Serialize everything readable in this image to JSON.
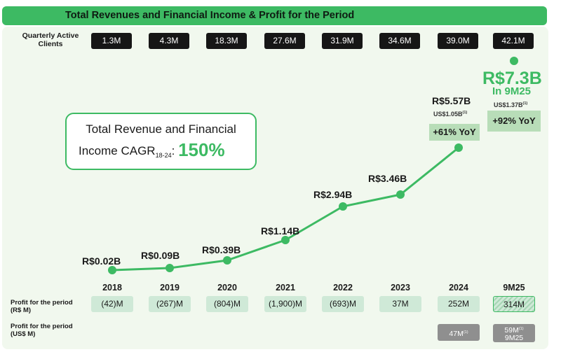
{
  "header": {
    "title": "Total Revenues and Financial Income & Profit for the Period"
  },
  "clients": {
    "label": "Quarterly Active Clients",
    "values": [
      "1.3M",
      "4.3M",
      "18.3M",
      "27.6M",
      "31.9M",
      "34.6M",
      "39.0M",
      "42.1M"
    ]
  },
  "cagr": {
    "line1": "Total Revenue and Financial",
    "line2": "Income CAGR",
    "sub": "18-24",
    "colon": ":",
    "value": "150%"
  },
  "chart_data": {
    "type": "line",
    "categories": [
      "2018",
      "2019",
      "2020",
      "2021",
      "2022",
      "2023",
      "2024"
    ],
    "values": [
      0.02,
      0.09,
      0.39,
      1.14,
      2.94,
      3.46,
      5.57
    ],
    "value_labels": [
      "R$0.02B",
      "R$0.09B",
      "R$0.39B",
      "R$1.14B",
      "R$2.94B",
      "R$3.46B",
      "R$5.57B"
    ],
    "unit": "R$ billions",
    "extra_point": {
      "category": "9M25",
      "value": 7.3,
      "label": "R$7.3B",
      "sublabel": "In 9M25",
      "usd": "US$1.37B",
      "yoy": "+92% YoY"
    },
    "annotation_2024": {
      "usd": "US$1.05B",
      "yoy": "+61% YoY"
    },
    "line_color": "#3dba63"
  },
  "years": [
    "2018",
    "2019",
    "2020",
    "2021",
    "2022",
    "2023",
    "2024",
    "9M25"
  ],
  "profit_brl": {
    "label_line1": "Profit for the period",
    "label_line2": "(R$ M)",
    "values": [
      "(42)M",
      "(267)M",
      "(804)M",
      "(1,900)M",
      "(693)M",
      "37M",
      "252M",
      "314M"
    ]
  },
  "profit_usd": {
    "label_line1": "Profit for the period",
    "label_line2": "(US$ M)",
    "v2024": "47M",
    "v9m25_line1": "59M",
    "v9m25_line2": "9M25",
    "footnote": "(1)"
  }
}
